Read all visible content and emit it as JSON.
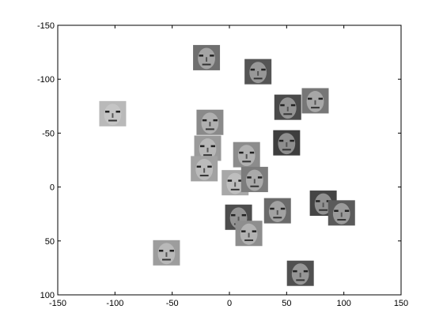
{
  "chart_data": {
    "type": "scatter",
    "title": "",
    "xlabel": "",
    "ylabel": "",
    "xlim": [
      -150,
      150
    ],
    "ylim": [
      -150,
      100
    ],
    "y_reversed": true,
    "grid": false,
    "x_ticks": [
      "-150",
      "-100",
      "-50",
      "0",
      "50",
      "100",
      "150"
    ],
    "y_ticks": [
      "-150",
      "-100",
      "-50",
      "0",
      "50",
      "100"
    ],
    "marker": "face-thumbnail",
    "points": [
      {
        "x": -20,
        "y": -120,
        "tone": "#6f6f6f"
      },
      {
        "x": 25,
        "y": -107,
        "tone": "#555555"
      },
      {
        "x": -102,
        "y": -68,
        "tone": "#b9b9b9"
      },
      {
        "x": -17,
        "y": -60,
        "tone": "#8a8a8a"
      },
      {
        "x": 51,
        "y": -74,
        "tone": "#4a4a4a"
      },
      {
        "x": 75,
        "y": -80,
        "tone": "#777777"
      },
      {
        "x": 50,
        "y": -41,
        "tone": "#3e3e3e"
      },
      {
        "x": -19,
        "y": -36,
        "tone": "#9a9a9a"
      },
      {
        "x": 15,
        "y": -30,
        "tone": "#8c8c8c"
      },
      {
        "x": -22,
        "y": -17,
        "tone": "#a2a2a2"
      },
      {
        "x": 5,
        "y": -4,
        "tone": "#a8a8a8"
      },
      {
        "x": 22,
        "y": -7,
        "tone": "#7c7c7c"
      },
      {
        "x": 82,
        "y": 15,
        "tone": "#454545"
      },
      {
        "x": 98,
        "y": 24,
        "tone": "#5a5a5a"
      },
      {
        "x": 42,
        "y": 22,
        "tone": "#6a6a6a"
      },
      {
        "x": 8,
        "y": 28,
        "tone": "#4d4d4d"
      },
      {
        "x": 17,
        "y": 43,
        "tone": "#8e8e8e"
      },
      {
        "x": -55,
        "y": 61,
        "tone": "#9d9d9d"
      },
      {
        "x": 62,
        "y": 80,
        "tone": "#505050"
      }
    ]
  }
}
